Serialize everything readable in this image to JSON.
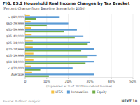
{
  "chart_data": {
    "type": "bar",
    "orientation": "horizontal",
    "title": "FIG. ES.2 Household Real Income Changes by Tax Bracket",
    "subtitle": "(Percent Change from Baseline Scenario in 2030)",
    "x_label": "(Expressed as % of 2030 Household Income)",
    "categories": [
      "> $80,000",
      "$60-79,999",
      "$50-59,999",
      "$35-49,999",
      "$25-34,999",
      "$20-24,999",
      "$15-19,999",
      "$10-14,999",
      "< $10,000",
      "Average"
    ],
    "series": [
      {
        "name": "LTSS",
        "color": "#f5c242",
        "values": [
          2.2,
          2.5,
          2.8,
          3.0,
          3.5,
          3.5,
          3.8,
          3.8,
          2.8,
          3.2
        ]
      },
      {
        "name": "Innovation",
        "color": "#5b9bd5",
        "values": [
          16.0,
          20.0,
          24.0,
          27.0,
          30.0,
          32.0,
          33.0,
          32.0,
          22.0,
          32.0
        ]
      },
      {
        "name": "Equity",
        "color": "#70ad47",
        "values": [
          5.0,
          10.0,
          18.0,
          23.0,
          29.0,
          26.0,
          29.0,
          28.0,
          7.0,
          11.0
        ]
      }
    ],
    "xlim": [
      0,
      50
    ],
    "xticks": [
      0,
      {
        "value": 10,
        "label": "10%"
      },
      {
        "value": 20,
        "label": "20%"
      },
      {
        "value": 30,
        "label": "30%"
      },
      {
        "value": 40,
        "label": "40%"
      },
      {
        "value": 50,
        "label": "50%"
      }
    ],
    "grid": true,
    "legend": "bottom",
    "annotations": [
      {
        "text": "Source: Authors' Analysis"
      },
      {
        "text": "NEXT 10"
      }
    ]
  }
}
